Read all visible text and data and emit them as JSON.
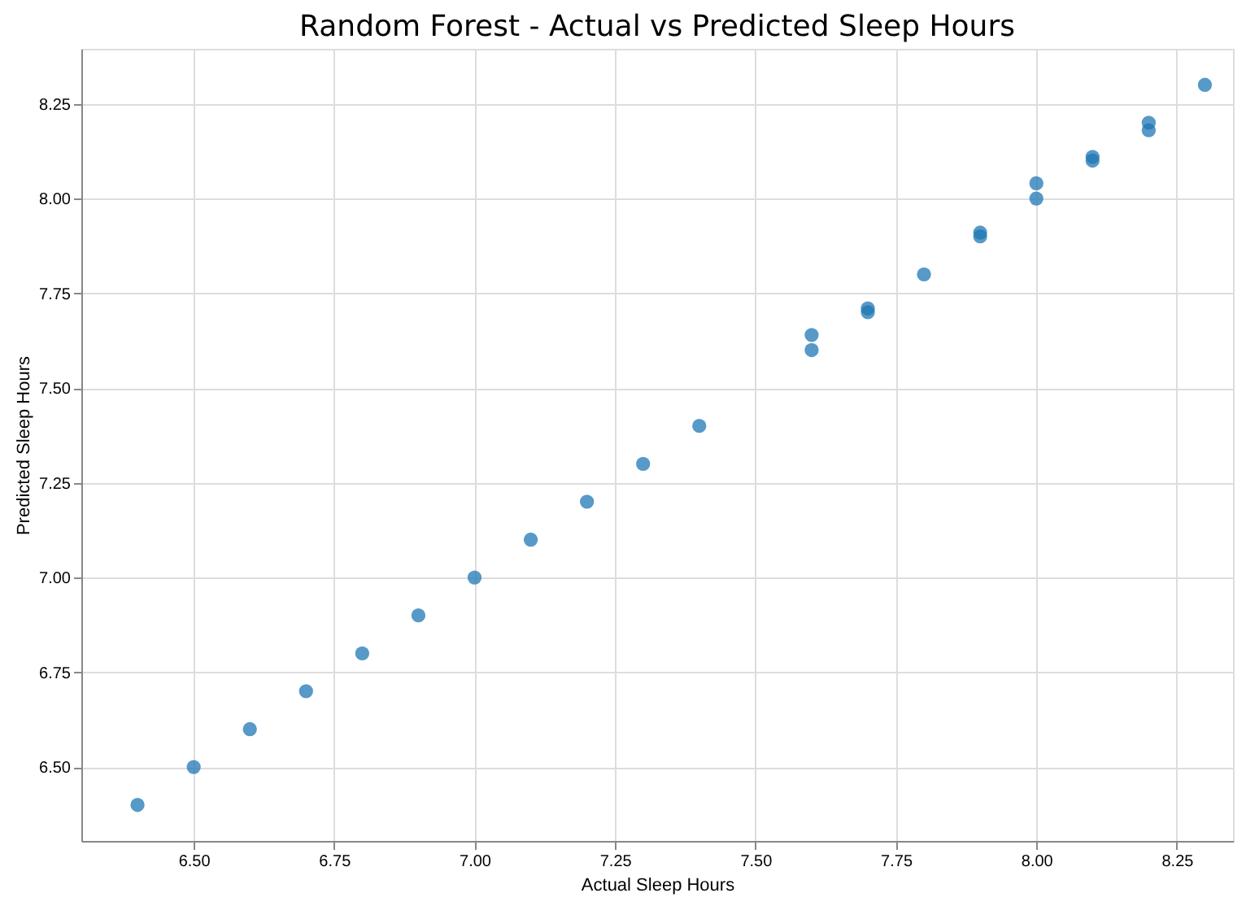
{
  "chart_data": {
    "type": "scatter",
    "title": "Random Forest - Actual vs Predicted Sleep Hours",
    "xlabel": "Actual Sleep Hours",
    "ylabel": "Predicted Sleep Hours",
    "x": [
      6.4,
      6.5,
      6.6,
      6.7,
      6.8,
      6.9,
      7.0,
      7.1,
      7.2,
      7.3,
      7.4,
      7.6,
      7.6,
      7.7,
      7.7,
      7.8,
      7.9,
      7.9,
      8.0,
      8.0,
      8.1,
      8.1,
      8.2,
      8.2,
      8.3
    ],
    "series": [
      {
        "color": "#1f77b4",
        "values": [
          6.4,
          6.5,
          6.6,
          6.7,
          6.8,
          6.9,
          7.0,
          7.1,
          7.2,
          7.3,
          7.4,
          7.64,
          7.6,
          7.71,
          7.7,
          7.8,
          7.91,
          7.9,
          8.04,
          8.0,
          8.11,
          8.1,
          8.18,
          8.2,
          8.3
        ]
      }
    ],
    "xlim": [
      6.3,
      8.35
    ],
    "ylim": [
      6.305,
      8.395
    ],
    "xticks": [
      {
        "value": 6.5,
        "label": "6.50"
      },
      {
        "value": 6.75,
        "label": "6.75"
      },
      {
        "value": 7.0,
        "label": "7.00"
      },
      {
        "value": 7.25,
        "label": "7.25"
      },
      {
        "value": 7.5,
        "label": "7.50"
      },
      {
        "value": 7.75,
        "label": "7.75"
      },
      {
        "value": 8.0,
        "label": "8.00"
      },
      {
        "value": 8.25,
        "label": "8.25"
      }
    ],
    "yticks": [
      {
        "value": 6.5,
        "label": "6.50"
      },
      {
        "value": 6.75,
        "label": "6.75"
      },
      {
        "value": 7.0,
        "label": "7.00"
      },
      {
        "value": 7.25,
        "label": "7.25"
      },
      {
        "value": 7.5,
        "label": "7.50"
      },
      {
        "value": 7.75,
        "label": "7.75"
      },
      {
        "value": 8.0,
        "label": "8.00"
      },
      {
        "value": 8.25,
        "label": "8.25"
      }
    ],
    "grid": true,
    "marker": "circle"
  }
}
